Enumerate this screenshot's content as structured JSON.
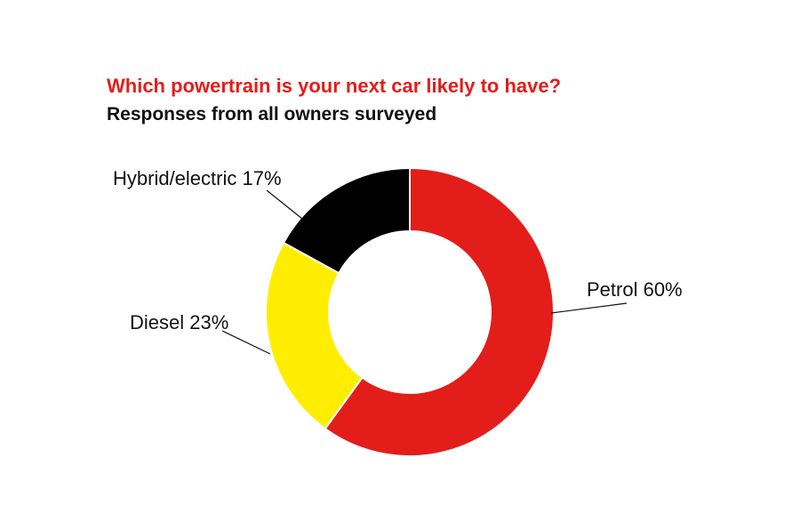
{
  "chart_data": {
    "type": "pie",
    "donut": true,
    "title": "Which powertrain is your next car likely to have?",
    "subtitle": "Responses from all owners surveyed",
    "slices": [
      {
        "category": "Petrol",
        "value": 60,
        "label": "Petrol 60%",
        "color": "#e31d1a"
      },
      {
        "category": "Diesel",
        "value": 23,
        "label": "Diesel 23%",
        "color": "#ffed00"
      },
      {
        "category": "Hybrid/electric",
        "value": 17,
        "label": "Hybrid/electric 17%",
        "color": "#000000"
      }
    ],
    "legend": "none",
    "title_color": "#e31d1a"
  }
}
